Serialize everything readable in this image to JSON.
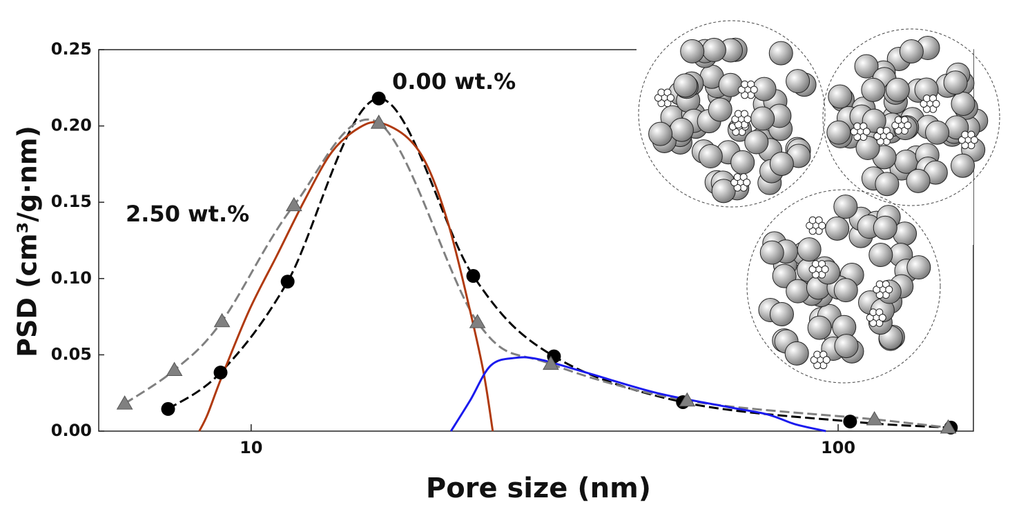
{
  "chart_data": {
    "type": "line",
    "x_label": "Pore size (nm)",
    "y_label": "PSD (cm³/g·nm)",
    "log_x": true,
    "xlim": [
      5.5,
      170
    ],
    "xticks": [
      10,
      100
    ],
    "ylim": [
      0,
      0.25
    ],
    "yticks": [
      {
        "value": 0,
        "label": "0.00"
      },
      {
        "value": 0.05,
        "label": "0.05"
      },
      {
        "value": 0.1,
        "label": "0.10"
      },
      {
        "value": 0.15,
        "label": "0.15"
      },
      {
        "value": 0.2,
        "label": "0.20"
      },
      {
        "value": 0.25,
        "label": "0.25"
      }
    ],
    "series": [
      {
        "name": "0.00 wt.%",
        "color": "#000000",
        "marker": "circle",
        "dash": true,
        "x": [
          7.22,
          8.87,
          11.54,
          16.5,
          23.9,
          32.8,
          54.4,
          104.8,
          155.6
        ],
        "values": [
          0.0145,
          0.0384,
          0.098,
          0.218,
          0.1017,
          0.049,
          0.019,
          0.0063,
          0.0023
        ]
      },
      {
        "name": "2.50 wt.%",
        "color": "#808080",
        "marker": "triangle",
        "dash": true,
        "x": [
          6.09,
          7.4,
          8.92,
          11.83,
          16.5,
          24.3,
          32.4,
          55.3,
          115.3,
          154
        ],
        "values": [
          0.018,
          0.04,
          0.072,
          0.148,
          0.202,
          0.0714,
          0.044,
          0.02,
          0.0077,
          0.0023
        ]
      },
      {
        "color": "#b03a10",
        "marker": "none",
        "dash": false,
        "x": [
          8.16,
          8.43,
          8.9,
          9.92,
          11.06,
          12.32,
          13.73,
          15.3,
          16.6,
          18.5,
          20.06,
          21.78,
          23.6,
          24.9,
          25.8
        ],
        "values": [
          0,
          0.011,
          0.035,
          0.079,
          0.115,
          0.151,
          0.183,
          0.199,
          0.202,
          0.192,
          0.172,
          0.133,
          0.079,
          0.038,
          0
        ]
      },
      {
        "color": "#1a1aee",
        "marker": "none",
        "dash": false,
        "x": [
          21.9,
          23.6,
          25.6,
          28.2,
          31.0,
          37.5,
          49.1,
          64.5,
          75.7,
          84.5,
          95.3
        ],
        "values": [
          0,
          0.02,
          0.043,
          0.048,
          0.047,
          0.038,
          0.025,
          0.016,
          0.011,
          0.0045,
          0
        ]
      }
    ]
  }
}
